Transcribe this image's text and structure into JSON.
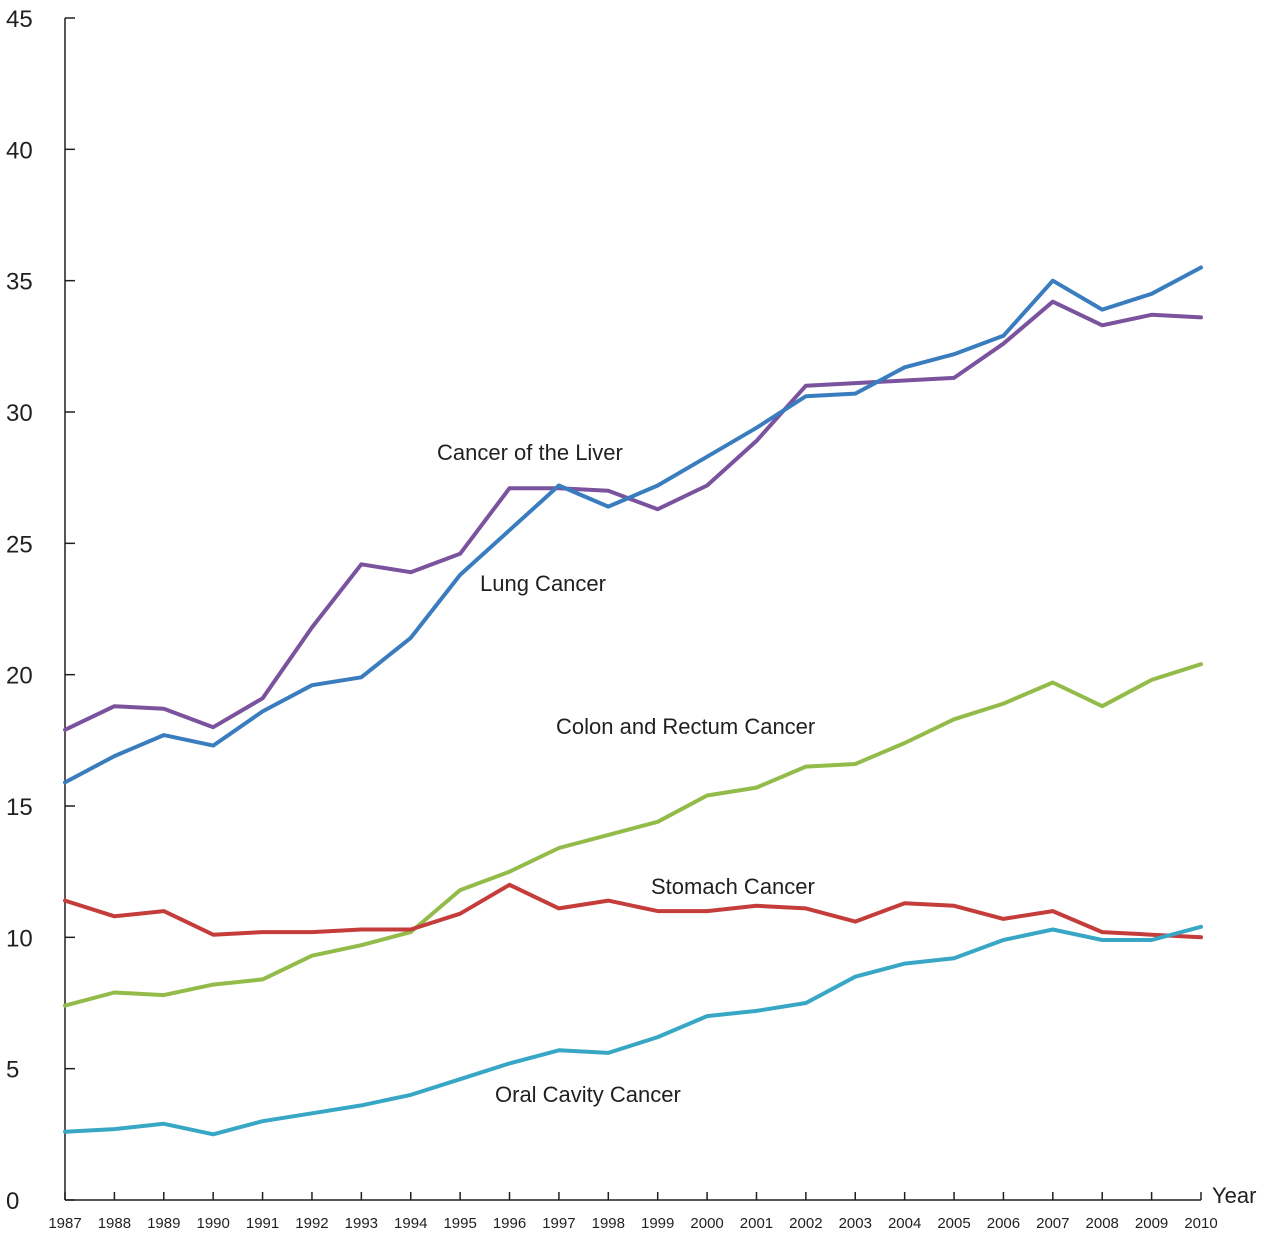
{
  "chart_data": {
    "type": "line",
    "xlabel": "Year",
    "ylabel": "",
    "ylim": [
      0,
      45
    ],
    "yticks": [
      0,
      5,
      10,
      15,
      20,
      25,
      30,
      35,
      40,
      45
    ],
    "x": [
      "1987",
      "1988",
      "1989",
      "1990",
      "1991",
      "1992",
      "1993",
      "1994",
      "1995",
      "1996",
      "1997",
      "1998",
      "1999",
      "2000",
      "2001",
      "2002",
      "2003",
      "2004",
      "2005",
      "2006",
      "2007",
      "2008",
      "2009",
      "2010"
    ],
    "grid": false,
    "series": [
      {
        "name": "Cancer of the Liver",
        "color": "#7b529d",
        "values": [
          17.9,
          18.8,
          18.7,
          18.0,
          19.1,
          21.8,
          24.2,
          23.9,
          24.6,
          27.1,
          27.1,
          27.0,
          26.3,
          27.2,
          28.9,
          31.0,
          31.1,
          31.2,
          31.3,
          32.6,
          34.2,
          33.3,
          33.7,
          33.6
        ]
      },
      {
        "name": "Lung Cancer",
        "color": "#3a7dbf",
        "values": [
          15.9,
          16.9,
          17.7,
          17.3,
          18.6,
          19.6,
          19.9,
          21.4,
          23.8,
          25.5,
          27.2,
          26.4,
          27.2,
          28.3,
          29.4,
          30.6,
          30.7,
          31.7,
          32.2,
          32.9,
          35.0,
          33.9,
          34.5,
          35.5
        ]
      },
      {
        "name": "Colon and Rectum Cancer",
        "color": "#92bb4a",
        "values": [
          7.4,
          7.9,
          7.8,
          8.2,
          8.4,
          9.3,
          9.7,
          10.2,
          11.8,
          12.5,
          13.4,
          13.9,
          14.4,
          15.4,
          15.7,
          16.5,
          16.6,
          17.4,
          18.3,
          18.9,
          19.7,
          18.8,
          19.8,
          20.4
        ]
      },
      {
        "name": "Stomach Cancer",
        "color": "#c43d3b",
        "values": [
          11.4,
          10.8,
          11.0,
          10.1,
          10.2,
          10.2,
          10.3,
          10.3,
          10.9,
          12.0,
          11.1,
          11.4,
          11.0,
          11.0,
          11.2,
          11.1,
          10.6,
          11.3,
          11.2,
          10.7,
          11.0,
          10.2,
          10.1,
          10.0
        ]
      },
      {
        "name": "Oral Cavity Cancer",
        "color": "#38a7c6",
        "values": [
          2.6,
          2.7,
          2.9,
          2.5,
          3.0,
          3.3,
          3.6,
          4.0,
          4.6,
          5.2,
          5.7,
          5.6,
          6.2,
          7.0,
          7.2,
          7.5,
          8.5,
          9.0,
          9.2,
          9.9,
          10.3,
          9.9,
          9.9,
          10.4
        ]
      }
    ],
    "annotations": [
      "Cancer of the Liver",
      "Lung Cancer",
      "Colon and Rectum Cancer",
      "Stomach Cancer",
      "Oral Cavity Cancer"
    ]
  }
}
